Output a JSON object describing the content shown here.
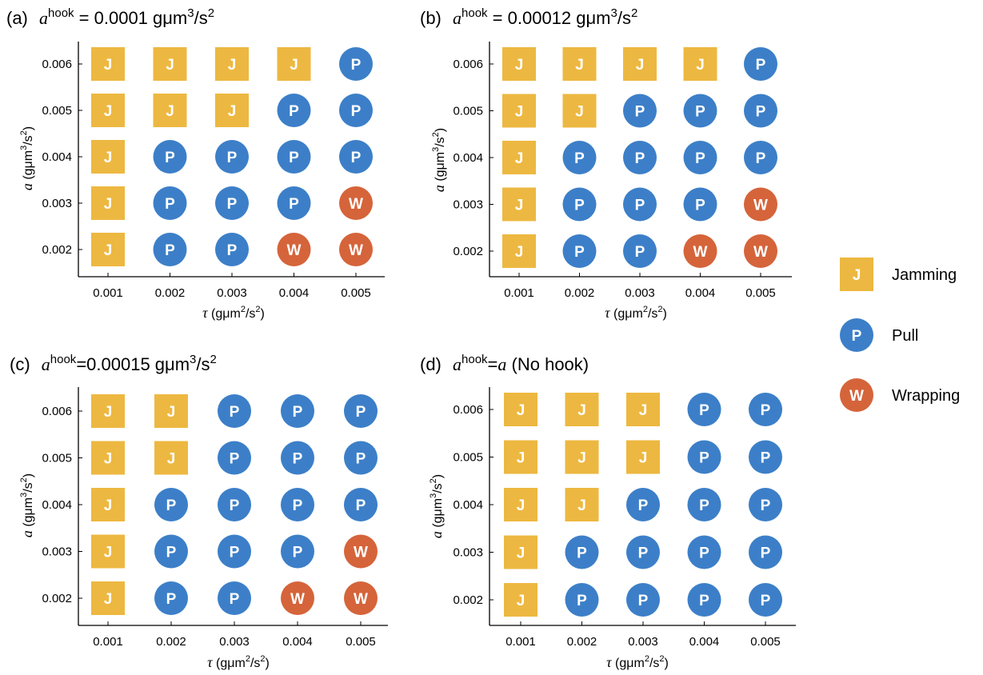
{
  "colors": {
    "J": "#EDB841",
    "P": "#3C7FC8",
    "W": "#D5643A",
    "marker_text": "#ffffff",
    "axis": "#000000"
  },
  "legend": [
    {
      "code": "J",
      "label": "Jamming",
      "shape": "square"
    },
    {
      "code": "P",
      "label": "Pull",
      "shape": "circle"
    },
    {
      "code": "W",
      "label": "Wrapping",
      "shape": "circle"
    }
  ],
  "chart_data": [
    {
      "type": "scatter",
      "panel": "(a)",
      "title_base": "a",
      "title_sup": "hook",
      "title_rest": " = 0.0001 gμm",
      "title_unit_sup": "3",
      "title_unit_tail": "/s",
      "title_unit_sup2": "2",
      "xlabel_sym": "τ",
      "xlabel_unit": "(gμm",
      "xlabel_sup": "2",
      "xlabel_tail": "/s",
      "xlabel_sup2": "2",
      "xlabel_close": ")",
      "ylabel_sym": "a",
      "ylabel_unit": "(gμm",
      "ylabel_sup": "3",
      "ylabel_tail": "/s",
      "ylabel_sup2": "2",
      "ylabel_close": ")",
      "x_ticks": [
        "0.001",
        "0.002",
        "0.003",
        "0.004",
        "0.005"
      ],
      "y_ticks": [
        "0.002",
        "0.003",
        "0.004",
        "0.005",
        "0.006"
      ],
      "x": [
        0.001,
        0.002,
        0.003,
        0.004,
        0.005
      ],
      "y": [
        0.002,
        0.003,
        0.004,
        0.005,
        0.006
      ],
      "grid": [
        [
          "J",
          "J",
          "J",
          "J",
          "P"
        ],
        [
          "J",
          "J",
          "J",
          "P",
          "P"
        ],
        [
          "J",
          "P",
          "P",
          "P",
          "P"
        ],
        [
          "J",
          "P",
          "P",
          "P",
          "W"
        ],
        [
          "J",
          "P",
          "P",
          "W",
          "W"
        ]
      ]
    },
    {
      "type": "scatter",
      "panel": "(b)",
      "title_base": "a",
      "title_sup": "hook",
      "title_rest": " = 0.00012 gμm",
      "title_unit_sup": "3",
      "title_unit_tail": "/s",
      "title_unit_sup2": "2",
      "xlabel_sym": "τ",
      "xlabel_unit": "(gμm",
      "xlabel_sup": "2",
      "xlabel_tail": "/s",
      "xlabel_sup2": "2",
      "xlabel_close": ")",
      "ylabel_sym": "a",
      "ylabel_unit": "(gμm",
      "ylabel_sup": "3",
      "ylabel_tail": "/s",
      "ylabel_sup2": "2",
      "ylabel_close": ")",
      "x_ticks": [
        "0.001",
        "0.002",
        "0.003",
        "0.004",
        "0.005"
      ],
      "y_ticks": [
        "0.002",
        "0.003",
        "0.004",
        "0.005",
        "0.006"
      ],
      "x": [
        0.001,
        0.002,
        0.003,
        0.004,
        0.005
      ],
      "y": [
        0.002,
        0.003,
        0.004,
        0.005,
        0.006
      ],
      "grid": [
        [
          "J",
          "J",
          "J",
          "J",
          "P"
        ],
        [
          "J",
          "J",
          "P",
          "P",
          "P"
        ],
        [
          "J",
          "P",
          "P",
          "P",
          "P"
        ],
        [
          "J",
          "P",
          "P",
          "P",
          "W"
        ],
        [
          "J",
          "P",
          "P",
          "W",
          "W"
        ]
      ]
    },
    {
      "type": "scatter",
      "panel": "(c)",
      "title_base": "a",
      "title_sup": "hook",
      "title_rest": "=0.00015 gμm",
      "title_unit_sup": "3",
      "title_unit_tail": "/s",
      "title_unit_sup2": "2",
      "xlabel_sym": "τ",
      "xlabel_unit": "(gμm",
      "xlabel_sup": "2",
      "xlabel_tail": "/s",
      "xlabel_sup2": "2",
      "xlabel_close": ")",
      "ylabel_sym": "a",
      "ylabel_unit": "(gμm",
      "ylabel_sup": "3",
      "ylabel_tail": "/s",
      "ylabel_sup2": "2",
      "ylabel_close": ")",
      "x_ticks": [
        "0.001",
        "0.002",
        "0.003",
        "0.004",
        "0.005"
      ],
      "y_ticks": [
        "0.002",
        "0.003",
        "0.004",
        "0.005",
        "0.006"
      ],
      "x": [
        0.001,
        0.002,
        0.003,
        0.004,
        0.005
      ],
      "y": [
        0.002,
        0.003,
        0.004,
        0.005,
        0.006
      ],
      "grid": [
        [
          "J",
          "J",
          "P",
          "P",
          "P"
        ],
        [
          "J",
          "J",
          "P",
          "P",
          "P"
        ],
        [
          "J",
          "P",
          "P",
          "P",
          "P"
        ],
        [
          "J",
          "P",
          "P",
          "P",
          "W"
        ],
        [
          "J",
          "P",
          "P",
          "W",
          "W"
        ]
      ]
    },
    {
      "type": "scatter",
      "panel": "(d)",
      "title_base": "a",
      "title_sup": "hook",
      "title_rest": "=",
      "title_tail_sym": "a",
      "title_tail_text": " (No hook)",
      "xlabel_sym": "τ",
      "xlabel_unit": "(gμm",
      "xlabel_sup": "2",
      "xlabel_tail": "/s",
      "xlabel_sup2": "2",
      "xlabel_close": ")",
      "ylabel_sym": "a",
      "ylabel_unit": "(gμm",
      "ylabel_sup": "3",
      "ylabel_tail": "/s",
      "ylabel_sup2": "2",
      "ylabel_close": ")",
      "x_ticks": [
        "0.001",
        "0.002",
        "0.003",
        "0.004",
        "0.005"
      ],
      "y_ticks": [
        "0.002",
        "0.003",
        "0.004",
        "0.005",
        "0.006"
      ],
      "x": [
        0.001,
        0.002,
        0.003,
        0.004,
        0.005
      ],
      "y": [
        0.002,
        0.003,
        0.004,
        0.005,
        0.006
      ],
      "grid": [
        [
          "J",
          "J",
          "J",
          "P",
          "P"
        ],
        [
          "J",
          "J",
          "J",
          "P",
          "P"
        ],
        [
          "J",
          "J",
          "P",
          "P",
          "P"
        ],
        [
          "J",
          "P",
          "P",
          "P",
          "P"
        ],
        [
          "J",
          "P",
          "P",
          "P",
          "P"
        ]
      ]
    }
  ]
}
